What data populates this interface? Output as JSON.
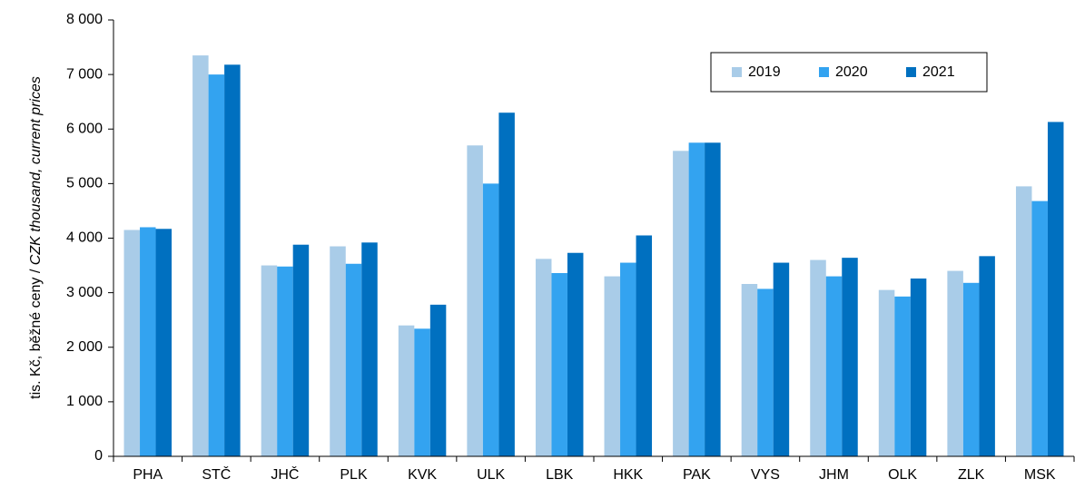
{
  "chart_data": {
    "type": "bar",
    "y_label": {
      "czech": "tis. Kč, běžné ceny / ",
      "english": "CZK thousand, current prices"
    },
    "categories": [
      "PHA",
      "STČ",
      "JHČ",
      "PLK",
      "KVK",
      "ULK",
      "LBK",
      "HKK",
      "PAK",
      "VYS",
      "JHM",
      "OLK",
      "ZLK",
      "MSK"
    ],
    "series": [
      {
        "name": "2019",
        "color": "#a9cce8",
        "values": [
          4150,
          7350,
          3500,
          3850,
          2400,
          5700,
          3620,
          3300,
          5600,
          3160,
          3600,
          3050,
          3400,
          4950
        ]
      },
      {
        "name": "2020",
        "color": "#33a3f0",
        "values": [
          4200,
          7000,
          3480,
          3530,
          2340,
          5000,
          3360,
          3550,
          5750,
          3070,
          3300,
          2930,
          3180,
          4680
        ]
      },
      {
        "name": "2021",
        "color": "#0070c0",
        "values": [
          4170,
          7180,
          3880,
          3920,
          2780,
          6300,
          3730,
          4050,
          5750,
          3550,
          3640,
          3260,
          3670,
          6130
        ]
      }
    ],
    "ylim": [
      0,
      8000
    ],
    "yticks": [
      0,
      {
        "value": 1000,
        "label": "1 000"
      },
      {
        "value": 2000,
        "label": "2 000"
      },
      {
        "value": 3000,
        "label": "3 000"
      },
      {
        "value": 4000,
        "label": "4 000"
      },
      {
        "value": 5000,
        "label": "5 000"
      },
      {
        "value": 6000,
        "label": "6 000"
      },
      {
        "value": 7000,
        "label": "7 000"
      },
      {
        "value": 8000,
        "label": "8 000"
      }
    ],
    "grid": false,
    "legend": "upper right"
  }
}
